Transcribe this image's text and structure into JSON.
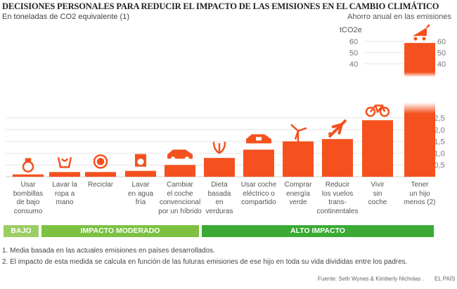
{
  "title": "DECISIONES PERSONALES PARA REDUCIR EL IMPACTO DE LAS EMISIONES EN EL CAMBIO CLIMÁTICO",
  "subtitle": "En toneladas de CO2 equivalente (1)",
  "right_title": "Ahorro anual en las emisiones",
  "unit": "tCO2e",
  "colors": {
    "bar": "#f4511e",
    "bajo": "#9ccc65",
    "moderado": "#7cc142",
    "alto": "#3aaa35"
  },
  "chart_data": {
    "type": "bar",
    "axis_break": true,
    "ylabel": "tCO2e",
    "upper_ticks": [
      "60",
      "50",
      "40"
    ],
    "lower_ticks": [
      "2.5",
      "2.0",
      "1.5",
      "1.0",
      "0.5"
    ],
    "lower_tick_labels": [
      "2,5",
      "2,0",
      "1,5",
      "1,0",
      "0,5"
    ],
    "categories": [
      "Usar bombillas de bajo consumo",
      "Lavar la ropa a mano",
      "Reciclar",
      "Lavar en agua fría",
      "Cambiar el coche convencional por un híbrido",
      "Dieta basada en verduras",
      "Usar coche eléctrico o compartido",
      "Comprar energía verde",
      "Reducir los vuelos transcontinentales",
      "Vivir sin coche",
      "Tener un hijo menos (2)"
    ],
    "category_lines": [
      [
        "Usar",
        "bombillas",
        "de bajo",
        "consumo"
      ],
      [
        "Lavar la",
        "ropa a",
        "mano"
      ],
      [
        "Reciclar"
      ],
      [
        "Lavar",
        "en agua",
        "fría"
      ],
      [
        "Cambiar",
        "el coche",
        "convencional",
        "por un híbrido"
      ],
      [
        "Dieta",
        "basada",
        "en",
        "verduras"
      ],
      [
        "Usar coche",
        "eléctrico o",
        "compartido"
      ],
      [
        "Comprar",
        "energía",
        "verde"
      ],
      [
        "Reducir",
        "los vuelos",
        "trans-",
        "continentales"
      ],
      [
        "Vivir",
        "sin",
        "coche"
      ],
      [
        "Tener",
        "un hijo",
        "menos (2)"
      ]
    ],
    "icons": [
      "lightbulb-icon",
      "handwash-icon",
      "recycle-icon",
      "washing-machine-icon",
      "car-icon",
      "vegetables-icon",
      "electric-car-icon",
      "wind-turbine-icon",
      "airplane-icon",
      "bicycle-icon",
      "stroller-icon"
    ],
    "values": [
      0.1,
      0.2,
      0.2,
      0.25,
      0.5,
      0.8,
      1.15,
      1.5,
      1.6,
      2.4,
      58.6
    ]
  },
  "bands": [
    {
      "label": "BAJO"
    },
    {
      "label": "IMPACTO MODERADO"
    },
    {
      "label": "ALTO IMPACTO"
    }
  ],
  "notes": [
    "1. Media basada en las actuales emisiones en países desarrollados.",
    "2. El impacto de esta medida se calcula en función de las futuras emisiones de ese hijo en toda su vida divididas entre los padres."
  ],
  "source": "Fuente: Seth Wynes & Kimberly Nicholas .",
  "publisher": "EL PAÍS"
}
